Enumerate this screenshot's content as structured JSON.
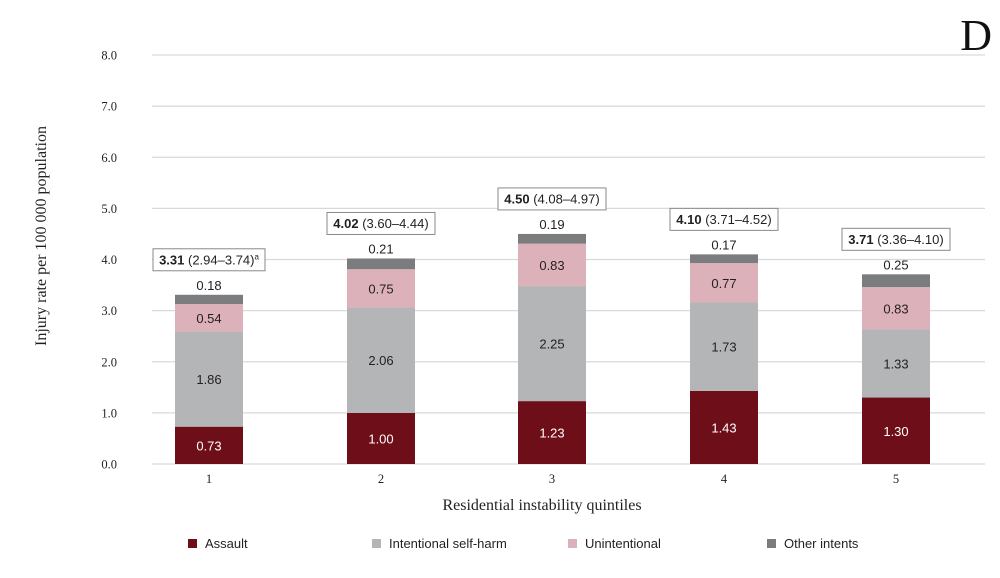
{
  "panel_label": "D",
  "chart_data": {
    "type": "bar",
    "stacked": true,
    "title": "",
    "xlabel": "Residential instability quintiles",
    "ylabel": "Injury rate per 100 000 population",
    "ylim": [
      0,
      8
    ],
    "yticks": [
      "0.0",
      "1.0",
      "2.0",
      "3.0",
      "4.0",
      "5.0",
      "6.0",
      "7.0",
      "8.0"
    ],
    "grid": true,
    "categories": [
      "1",
      "2",
      "3",
      "4",
      "5"
    ],
    "series": [
      {
        "name": "Assault",
        "color": "#6e0e18",
        "values": [
          0.73,
          1.0,
          1.23,
          1.43,
          1.3
        ],
        "labels": [
          "0.73",
          "1.00",
          "1.23",
          "1.43",
          "1.30"
        ]
      },
      {
        "name": "Intentional self-harm",
        "color": "#b4b5b7",
        "values": [
          1.86,
          2.06,
          2.25,
          1.73,
          1.33
        ],
        "labels": [
          "1.86",
          "2.06",
          "2.25",
          "1.73",
          "1.33"
        ]
      },
      {
        "name": "Unintentional",
        "color": "#ddb1b9",
        "values": [
          0.54,
          0.75,
          0.83,
          0.77,
          0.83
        ],
        "labels": [
          "0.54",
          "0.75",
          "0.83",
          "0.77",
          "0.83"
        ]
      },
      {
        "name": "Other intents",
        "color": "#7b7c7e",
        "values": [
          0.18,
          0.21,
          0.19,
          0.17,
          0.25
        ],
        "labels": [
          "0.18",
          "0.21",
          "0.19",
          "0.17",
          "0.25"
        ]
      }
    ],
    "totals": [
      {
        "value": "3.31",
        "ci": "(2.94–3.74)",
        "note": "a"
      },
      {
        "value": "4.02",
        "ci": "(3.60–4.44)",
        "note": ""
      },
      {
        "value": "4.50",
        "ci": "(4.08–4.97)",
        "note": ""
      },
      {
        "value": "4.10",
        "ci": "(3.71–4.52)",
        "note": ""
      },
      {
        "value": "3.71",
        "ci": "(3.36–4.10)",
        "note": ""
      }
    ],
    "legend_position": "bottom"
  }
}
